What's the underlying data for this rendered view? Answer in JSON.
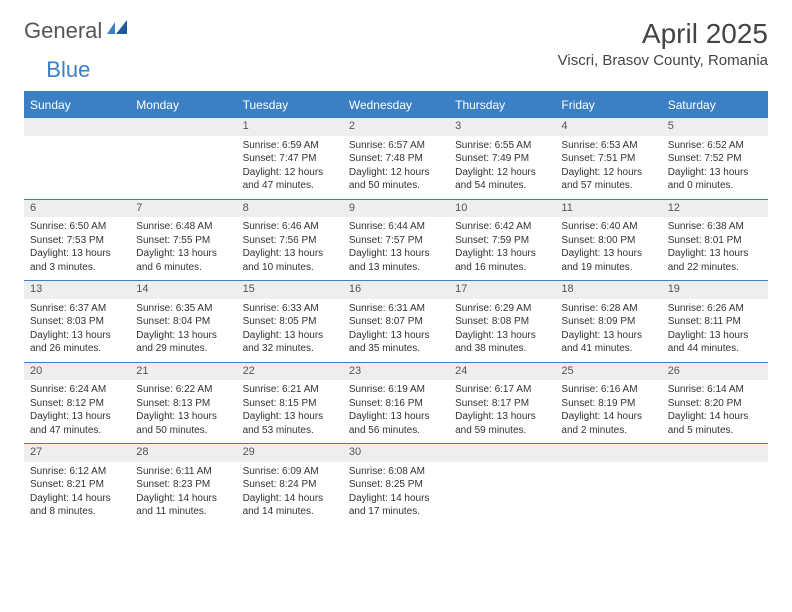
{
  "logo": {
    "word1": "General",
    "word2": "Blue"
  },
  "title": "April 2025",
  "location": "Viscri, Brasov County, Romania",
  "colors": {
    "accent": "#3b7fc4",
    "header_bg": "#3b7fc4",
    "daynum_bg": "#eeeeee",
    "text": "#333333",
    "background": "#ffffff"
  },
  "typography": {
    "title_fontsize": 28,
    "location_fontsize": 15,
    "dayheader_fontsize": 12,
    "daynum_fontsize": 11,
    "cell_fontsize": 10
  },
  "day_headers": [
    "Sunday",
    "Monday",
    "Tuesday",
    "Wednesday",
    "Thursday",
    "Friday",
    "Saturday"
  ],
  "weeks": [
    [
      null,
      null,
      {
        "n": "1",
        "sunrise": "6:59 AM",
        "sunset": "7:47 PM",
        "daylight": "12 hours and 47 minutes."
      },
      {
        "n": "2",
        "sunrise": "6:57 AM",
        "sunset": "7:48 PM",
        "daylight": "12 hours and 50 minutes."
      },
      {
        "n": "3",
        "sunrise": "6:55 AM",
        "sunset": "7:49 PM",
        "daylight": "12 hours and 54 minutes."
      },
      {
        "n": "4",
        "sunrise": "6:53 AM",
        "sunset": "7:51 PM",
        "daylight": "12 hours and 57 minutes."
      },
      {
        "n": "5",
        "sunrise": "6:52 AM",
        "sunset": "7:52 PM",
        "daylight": "13 hours and 0 minutes."
      }
    ],
    [
      {
        "n": "6",
        "sunrise": "6:50 AM",
        "sunset": "7:53 PM",
        "daylight": "13 hours and 3 minutes."
      },
      {
        "n": "7",
        "sunrise": "6:48 AM",
        "sunset": "7:55 PM",
        "daylight": "13 hours and 6 minutes."
      },
      {
        "n": "8",
        "sunrise": "6:46 AM",
        "sunset": "7:56 PM",
        "daylight": "13 hours and 10 minutes."
      },
      {
        "n": "9",
        "sunrise": "6:44 AM",
        "sunset": "7:57 PM",
        "daylight": "13 hours and 13 minutes."
      },
      {
        "n": "10",
        "sunrise": "6:42 AM",
        "sunset": "7:59 PM",
        "daylight": "13 hours and 16 minutes."
      },
      {
        "n": "11",
        "sunrise": "6:40 AM",
        "sunset": "8:00 PM",
        "daylight": "13 hours and 19 minutes."
      },
      {
        "n": "12",
        "sunrise": "6:38 AM",
        "sunset": "8:01 PM",
        "daylight": "13 hours and 22 minutes."
      }
    ],
    [
      {
        "n": "13",
        "sunrise": "6:37 AM",
        "sunset": "8:03 PM",
        "daylight": "13 hours and 26 minutes."
      },
      {
        "n": "14",
        "sunrise": "6:35 AM",
        "sunset": "8:04 PM",
        "daylight": "13 hours and 29 minutes."
      },
      {
        "n": "15",
        "sunrise": "6:33 AM",
        "sunset": "8:05 PM",
        "daylight": "13 hours and 32 minutes."
      },
      {
        "n": "16",
        "sunrise": "6:31 AM",
        "sunset": "8:07 PM",
        "daylight": "13 hours and 35 minutes."
      },
      {
        "n": "17",
        "sunrise": "6:29 AM",
        "sunset": "8:08 PM",
        "daylight": "13 hours and 38 minutes."
      },
      {
        "n": "18",
        "sunrise": "6:28 AM",
        "sunset": "8:09 PM",
        "daylight": "13 hours and 41 minutes."
      },
      {
        "n": "19",
        "sunrise": "6:26 AM",
        "sunset": "8:11 PM",
        "daylight": "13 hours and 44 minutes."
      }
    ],
    [
      {
        "n": "20",
        "sunrise": "6:24 AM",
        "sunset": "8:12 PM",
        "daylight": "13 hours and 47 minutes."
      },
      {
        "n": "21",
        "sunrise": "6:22 AM",
        "sunset": "8:13 PM",
        "daylight": "13 hours and 50 minutes."
      },
      {
        "n": "22",
        "sunrise": "6:21 AM",
        "sunset": "8:15 PM",
        "daylight": "13 hours and 53 minutes."
      },
      {
        "n": "23",
        "sunrise": "6:19 AM",
        "sunset": "8:16 PM",
        "daylight": "13 hours and 56 minutes."
      },
      {
        "n": "24",
        "sunrise": "6:17 AM",
        "sunset": "8:17 PM",
        "daylight": "13 hours and 59 minutes."
      },
      {
        "n": "25",
        "sunrise": "6:16 AM",
        "sunset": "8:19 PM",
        "daylight": "14 hours and 2 minutes."
      },
      {
        "n": "26",
        "sunrise": "6:14 AM",
        "sunset": "8:20 PM",
        "daylight": "14 hours and 5 minutes."
      }
    ],
    [
      {
        "n": "27",
        "sunrise": "6:12 AM",
        "sunset": "8:21 PM",
        "daylight": "14 hours and 8 minutes."
      },
      {
        "n": "28",
        "sunrise": "6:11 AM",
        "sunset": "8:23 PM",
        "daylight": "14 hours and 11 minutes."
      },
      {
        "n": "29",
        "sunrise": "6:09 AM",
        "sunset": "8:24 PM",
        "daylight": "14 hours and 14 minutes."
      },
      {
        "n": "30",
        "sunrise": "6:08 AM",
        "sunset": "8:25 PM",
        "daylight": "14 hours and 17 minutes."
      },
      null,
      null,
      null
    ]
  ],
  "labels": {
    "sunrise": "Sunrise:",
    "sunset": "Sunset:",
    "daylight": "Daylight:"
  }
}
